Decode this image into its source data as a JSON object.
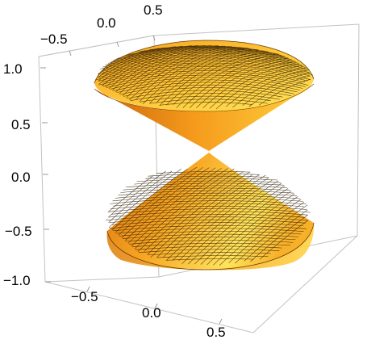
{
  "chart_data": {
    "type": "surface3d",
    "title": "",
    "surface": "double cone with spherical caps",
    "x_ticks": [
      "−0.5",
      "0.0",
      "0.5"
    ],
    "y_ticks": [
      "−0.5",
      "0.0",
      "0.5"
    ],
    "z_ticks": [
      "−1.0",
      "−0.5",
      "0.0",
      "0.5",
      "1.0"
    ],
    "xlim": [
      -0.8,
      0.8
    ],
    "ylim": [
      -0.8,
      0.8
    ],
    "zlim": [
      -1.05,
      1.05
    ],
    "box": true,
    "mesh": true
  },
  "style": {
    "surface_light": "#ffe866",
    "surface_mid": "#f7a81c",
    "surface_dark": "#c9650a",
    "box_color": "#c2c2c2"
  }
}
